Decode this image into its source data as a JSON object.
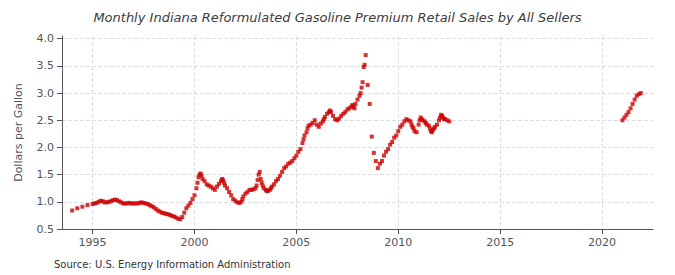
{
  "chart_data": {
    "type": "scatter",
    "title": "Monthly Indiana Reformulated Gasoline Premium Retail Sales by All Sellers",
    "ylabel": "Dollars per Gallon",
    "annotation": "Source: U.S. Energy Information Administration",
    "xlim": [
      1993.5,
      2022.5
    ],
    "ylim": [
      0.5,
      4.05
    ],
    "xticks": [
      1995,
      2000,
      2005,
      2010,
      2015,
      2020
    ],
    "yticks": [
      0.5,
      {
        "value": 1.0,
        "label": "1.0"
      },
      1.5,
      {
        "value": 2.0,
        "label": "2.0"
      },
      2.5,
      {
        "value": 3.0,
        "label": "3.0"
      },
      3.5,
      {
        "value": 4.0,
        "label": "4.0"
      }
    ],
    "color": "#cc0000",
    "marker": "square",
    "grid": true,
    "x": [
      1994.0,
      1994.25,
      1994.5,
      1994.75,
      1995.0,
      1995.1,
      1995.2,
      1995.3,
      1995.4,
      1995.5,
      1995.6,
      1995.7,
      1995.8,
      1995.9,
      1996.0,
      1996.1,
      1996.2,
      1996.3,
      1996.4,
      1996.5,
      1996.6,
      1996.7,
      1996.8,
      1996.9,
      1997.0,
      1997.1,
      1997.2,
      1997.3,
      1997.4,
      1997.5,
      1997.6,
      1997.7,
      1997.8,
      1997.9,
      1998.0,
      1998.1,
      1998.2,
      1998.3,
      1998.4,
      1998.5,
      1998.6,
      1998.7,
      1998.8,
      1998.9,
      1999.0,
      1999.1,
      1999.2,
      1999.3,
      1999.4,
      1999.5,
      1999.6,
      1999.7,
      1999.8,
      1999.9,
      2000.0,
      2000.1,
      2000.15,
      2000.2,
      2000.25,
      2000.3,
      2000.35,
      2000.4,
      2000.5,
      2000.6,
      2000.7,
      2000.8,
      2000.9,
      2001.0,
      2001.1,
      2001.2,
      2001.3,
      2001.35,
      2001.4,
      2001.45,
      2001.5,
      2001.6,
      2001.7,
      2001.8,
      2001.9,
      2002.0,
      2002.1,
      2002.2,
      2002.3,
      2002.35,
      2002.4,
      2002.5,
      2002.6,
      2002.7,
      2002.8,
      2002.9,
      2003.0,
      2003.05,
      2003.1,
      2003.15,
      2003.2,
      2003.25,
      2003.3,
      2003.35,
      2003.4,
      2003.5,
      2003.55,
      2003.6,
      2003.7,
      2003.75,
      2003.8,
      2003.9,
      2004.0,
      2004.1,
      2004.2,
      2004.3,
      2004.4,
      2004.5,
      2004.6,
      2004.7,
      2004.8,
      2004.9,
      2005.0,
      2005.1,
      2005.2,
      2005.3,
      2005.35,
      2005.4,
      2005.5,
      2005.55,
      2005.6,
      2005.7,
      2005.8,
      2005.9,
      2006.0,
      2006.1,
      2006.2,
      2006.3,
      2006.35,
      2006.4,
      2006.5,
      2006.6,
      2006.65,
      2006.7,
      2006.8,
      2006.9,
      2007.0,
      2007.1,
      2007.2,
      2007.3,
      2007.4,
      2007.5,
      2007.6,
      2007.7,
      2007.75,
      2007.8,
      2007.85,
      2007.9,
      2008.0,
      2008.1,
      2008.15,
      2008.2,
      2008.25,
      2008.3,
      2008.35,
      2008.4,
      2008.5,
      2008.6,
      2008.7,
      2008.8,
      2008.9,
      2009.0,
      2009.1,
      2009.2,
      2009.3,
      2009.4,
      2009.5,
      2009.6,
      2009.7,
      2009.8,
      2009.9,
      2010.0,
      2010.1,
      2010.2,
      2010.3,
      2010.4,
      2010.5,
      2010.6,
      2010.65,
      2010.7,
      2010.75,
      2010.8,
      2010.9,
      2011.0,
      2011.05,
      2011.1,
      2011.15,
      2011.2,
      2011.3,
      2011.35,
      2011.4,
      2011.5,
      2011.55,
      2011.6,
      2011.65,
      2011.7,
      2011.75,
      2011.8,
      2011.9,
      2012.0,
      2012.05,
      2012.1,
      2012.15,
      2012.2,
      2012.25,
      2012.3,
      2012.4,
      2012.5,
      2021.0,
      2021.1,
      2021.2,
      2021.3,
      2021.4,
      2021.5,
      2021.6,
      2021.7,
      2021.8,
      2021.9
    ],
    "values": [
      0.84,
      0.88,
      0.91,
      0.94,
      0.96,
      0.97,
      0.98,
      1.0,
      1.02,
      1.01,
      0.99,
      0.99,
      1.0,
      1.01,
      1.03,
      1.04,
      1.03,
      1.01,
      0.99,
      0.97,
      0.97,
      0.97,
      0.98,
      0.97,
      0.97,
      0.97,
      0.97,
      0.98,
      0.99,
      0.98,
      0.97,
      0.96,
      0.94,
      0.92,
      0.9,
      0.87,
      0.84,
      0.82,
      0.8,
      0.79,
      0.78,
      0.77,
      0.76,
      0.74,
      0.73,
      0.71,
      0.69,
      0.68,
      0.72,
      0.8,
      0.88,
      0.93,
      0.98,
      1.05,
      1.12,
      1.25,
      1.35,
      1.45,
      1.5,
      1.52,
      1.48,
      1.42,
      1.38,
      1.32,
      1.3,
      1.28,
      1.25,
      1.22,
      1.28,
      1.33,
      1.38,
      1.42,
      1.4,
      1.35,
      1.3,
      1.25,
      1.18,
      1.12,
      1.05,
      1.02,
      0.99,
      0.98,
      1.0,
      1.05,
      1.1,
      1.15,
      1.18,
      1.22,
      1.22,
      1.23,
      1.25,
      1.3,
      1.4,
      1.5,
      1.55,
      1.42,
      1.35,
      1.3,
      1.25,
      1.22,
      1.2,
      1.2,
      1.22,
      1.25,
      1.28,
      1.32,
      1.38,
      1.42,
      1.48,
      1.55,
      1.62,
      1.65,
      1.7,
      1.72,
      1.75,
      1.8,
      1.85,
      1.92,
      1.97,
      2.08,
      2.15,
      2.22,
      2.28,
      2.35,
      2.4,
      2.42,
      2.45,
      2.5,
      2.42,
      2.38,
      2.44,
      2.48,
      2.52,
      2.56,
      2.62,
      2.65,
      2.68,
      2.65,
      2.58,
      2.52,
      2.5,
      2.53,
      2.58,
      2.62,
      2.65,
      2.7,
      2.72,
      2.75,
      2.78,
      2.75,
      2.72,
      2.8,
      2.88,
      2.95,
      3.0,
      3.1,
      3.2,
      3.48,
      3.52,
      3.7,
      3.15,
      2.8,
      2.2,
      1.9,
      1.75,
      1.62,
      1.7,
      1.75,
      1.85,
      1.92,
      1.97,
      2.05,
      2.1,
      2.18,
      2.22,
      2.3,
      2.38,
      2.42,
      2.48,
      2.52,
      2.5,
      2.48,
      2.42,
      2.38,
      2.35,
      2.3,
      2.28,
      2.42,
      2.5,
      2.55,
      2.52,
      2.5,
      2.48,
      2.45,
      2.42,
      2.4,
      2.35,
      2.3,
      2.28,
      2.32,
      2.35,
      2.38,
      2.42,
      2.5,
      2.55,
      2.6,
      2.58,
      2.55,
      2.52,
      2.52,
      2.5,
      2.48,
      2.5,
      2.55,
      2.6,
      2.65,
      2.72,
      2.8,
      2.88,
      2.95,
      2.98,
      3.0
    ]
  }
}
